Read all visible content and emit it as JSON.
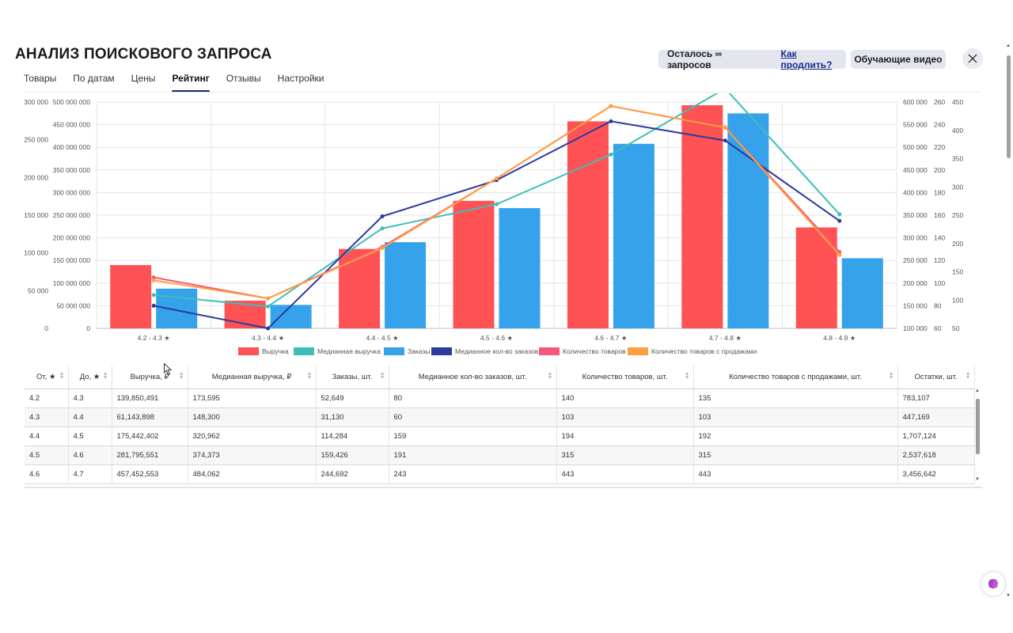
{
  "header": {
    "title": "АНАЛИЗ ПОИСКОВОГО ЗАПРОСА",
    "remaining": "Осталось ∞ запросов",
    "renew_link": "Как продлить?",
    "video_button": "Обучающие видео",
    "close_icon": "close-icon"
  },
  "tabs": [
    {
      "label": "Товары",
      "active": false
    },
    {
      "label": "По датам",
      "active": false
    },
    {
      "label": "Цены",
      "active": false
    },
    {
      "label": "Рейтинг",
      "active": true
    },
    {
      "label": "Отзывы",
      "active": false
    },
    {
      "label": "Настройки",
      "active": false
    }
  ],
  "chart_data": {
    "type": "bar",
    "categories": [
      "4.2 - 4.3 ★",
      "4.3 - 4.4 ★",
      "4.4 - 4.5 ★",
      "4.5 - 4.6 ★",
      "4.6 - 4.7 ★",
      "4.7 - 4.8 ★",
      "4.8 - 4.9 ★"
    ],
    "axes": {
      "left_outer": {
        "ticks": [
          "0",
          "50 000",
          "100 000",
          "150 000",
          "200 000",
          "250 000",
          "300 000"
        ],
        "min": 0,
        "max": 300000
      },
      "left_inner": {
        "ticks": [
          "0",
          "50 000 000",
          "100 000 000",
          "150 000 000",
          "200 000 000",
          "250 000 000",
          "300 000 000",
          "350 000 000",
          "400 000 000",
          "450 000 000",
          "500 000 000"
        ],
        "min": 0,
        "max": 500000000
      },
      "right_1": {
        "ticks": [
          "100 000",
          "150 000",
          "200 000",
          "250 000",
          "300 000",
          "350 000",
          "400 000",
          "450 000",
          "500 000",
          "550 000",
          "600 000"
        ],
        "min": 100000,
        "max": 600000
      },
      "right_2": {
        "ticks": [
          "60",
          "80",
          "100",
          "120",
          "140",
          "160",
          "180",
          "200",
          "220",
          "240",
          "260"
        ],
        "min": 60,
        "max": 260
      },
      "right_3": {
        "ticks": [
          "50",
          "100",
          "150",
          "200",
          "250",
          "300",
          "350",
          "400",
          "450"
        ],
        "min": 50,
        "max": 450
      }
    },
    "series": [
      {
        "name": "Выручка",
        "kind": "bar",
        "axis": "left_inner",
        "color": "#ff5254",
        "values": [
          139850491,
          61143898,
          175442402,
          281795551,
          457452553,
          493000000,
          223000000
        ]
      },
      {
        "name": "Медианная выручка",
        "kind": "line",
        "axis": "right_1",
        "color": "#3dbfb8",
        "values": [
          173595,
          148300,
          320962,
          374373,
          484062,
          630000,
          352000
        ]
      },
      {
        "name": "Заказы",
        "kind": "bar",
        "axis": "left_outer",
        "color": "#36a2eb",
        "values": [
          52649,
          31130,
          114284,
          159426,
          244692,
          285000,
          93000
        ]
      },
      {
        "name": "Медианное кол-во заказов",
        "kind": "line",
        "axis": "right_2",
        "color": "#2a3c9e",
        "values": [
          80,
          60,
          159,
          191,
          243,
          226,
          155
        ]
      },
      {
        "name": "Количество товаров",
        "kind": "line",
        "axis": "right_3",
        "color": "#f5587b",
        "values": [
          140,
          103,
          194,
          315,
          443,
          405,
          185
        ]
      },
      {
        "name": "Количество товаров с продажами",
        "kind": "line",
        "axis": "right_3",
        "color": "#ff9f40",
        "values": [
          135,
          103,
          192,
          315,
          443,
          405,
          180
        ]
      }
    ],
    "grid": true,
    "legend": "bottom"
  },
  "table": {
    "columns": [
      "От, ★",
      "До, ★",
      "Выручка, ₽",
      "Медианная выручка, ₽",
      "Заказы, шт.",
      "Медианное кол-во заказов, шт.",
      "Количество товаров, шт.",
      "Количество товаров с продажами, шт.",
      "Остатки, шт."
    ],
    "rows": [
      [
        "4.2",
        "4.3",
        "139,850,491",
        "173,595",
        "52,649",
        "80",
        "140",
        "135",
        "783,107"
      ],
      [
        "4.3",
        "4.4",
        "61,143,898",
        "148,300",
        "31,130",
        "60",
        "103",
        "103",
        "447,169"
      ],
      [
        "4.4",
        "4.5",
        "175,442,402",
        "320,962",
        "114,284",
        "159",
        "194",
        "192",
        "1,707,124"
      ],
      [
        "4.5",
        "4.6",
        "281,795,551",
        "374,373",
        "159,426",
        "191",
        "315",
        "315",
        "2,537,618"
      ],
      [
        "4.6",
        "4.7",
        "457,452,553",
        "484,062",
        "244,692",
        "243",
        "443",
        "443",
        "3,456,642"
      ]
    ]
  }
}
